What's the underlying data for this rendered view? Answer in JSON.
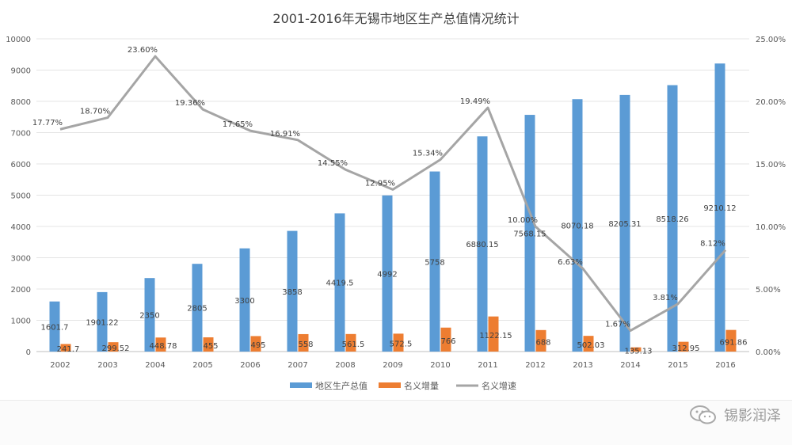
{
  "chart_data": {
    "type": "bar",
    "title": "2001-2016年无锡市地区生产总值情况统计",
    "categories": [
      "2002",
      "2003",
      "2004",
      "2005",
      "2006",
      "2007",
      "2008",
      "2009",
      "2010",
      "2011",
      "2012",
      "2013",
      "2014",
      "2015",
      "2016"
    ],
    "series": [
      {
        "name": "地区生产总值",
        "kind": "bar",
        "axis": "left",
        "color": "#5b9bd5",
        "values": [
          1601.7,
          1901.22,
          2350,
          2805,
          3300,
          3858,
          4419.5,
          4992,
          5758,
          6880.15,
          7568.15,
          8070.18,
          8205.31,
          8518.26,
          9210.12
        ],
        "labels": [
          "1601.7",
          "1901.22",
          "2350",
          "2805",
          "3300",
          "3858",
          "4419.5",
          "4992",
          "5758",
          "6880.15",
          "7568.15",
          "8070.18",
          "8205.31",
          "8518.26",
          "9210.12"
        ]
      },
      {
        "name": "名义增量",
        "kind": "bar",
        "axis": "left",
        "color": "#ed7d31",
        "values": [
          241.7,
          299.52,
          448.78,
          455,
          495,
          558,
          561.5,
          572.5,
          766,
          1122.15,
          688,
          502.03,
          135.13,
          312.95,
          691.86
        ],
        "labels": [
          "241.7",
          "299.52",
          "448.78",
          "455",
          "495",
          "558",
          "561.5",
          "572.5",
          "766",
          "1122.15",
          "688",
          "502.03",
          "135.13",
          "312.95",
          "691.86"
        ]
      },
      {
        "name": "名义增速",
        "kind": "line",
        "axis": "right",
        "color": "#a5a5a5",
        "values": [
          17.77,
          18.7,
          23.6,
          19.36,
          17.65,
          16.91,
          14.55,
          12.95,
          15.34,
          19.49,
          10.0,
          6.63,
          1.67,
          3.81,
          8.12
        ],
        "labels": [
          "17.77%",
          "18.70%",
          "23.60%",
          "19.36%",
          "17.65%",
          "16.91%",
          "14.55%",
          "12.95%",
          "15.34%",
          "19.49%",
          "10.00%",
          "6.63%",
          "1.67%",
          "3.81%",
          "8.12%"
        ]
      }
    ],
    "y_left": {
      "min": 0,
      "max": 10000,
      "step": 1000,
      "ticks": [
        "0",
        "1000",
        "2000",
        "3000",
        "4000",
        "5000",
        "6000",
        "7000",
        "8000",
        "9000",
        "10000"
      ]
    },
    "y_right": {
      "min": 0,
      "max": 25,
      "step": 5,
      "ticks": [
        "0.00%",
        "5.00%",
        "10.00%",
        "15.00%",
        "20.00%",
        "25.00%"
      ]
    },
    "grid": true,
    "legend_position": "bottom"
  },
  "watermark": {
    "text": "锡影润泽",
    "icon": "wechat-icon"
  }
}
